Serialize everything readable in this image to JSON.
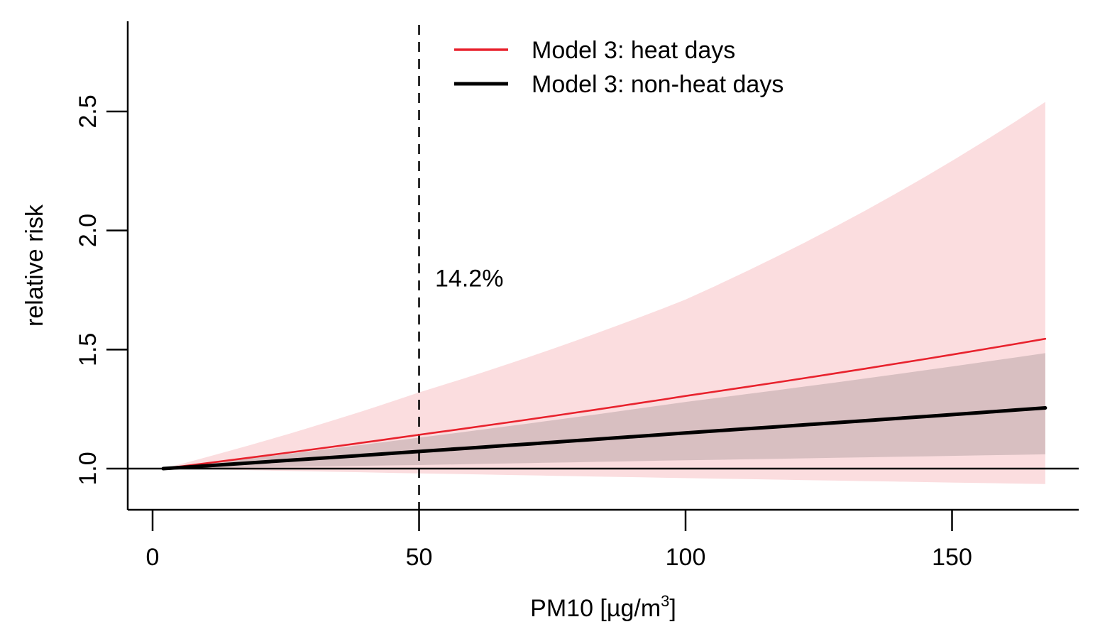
{
  "chart_data": {
    "type": "line",
    "xlabel": "PM10 [µg/m",
    "xlabel_superscript": "3",
    "xlabel_suffix": "]",
    "ylabel": "relative risk",
    "xlim": [
      -5,
      175
    ],
    "ylim": [
      0.83,
      2.87
    ],
    "x_ticks": [
      0,
      50,
      100,
      150
    ],
    "x_tick_labels": [
      "0",
      "50",
      "100",
      "150"
    ],
    "y_ticks": [
      1.0,
      1.5,
      2.0,
      2.5
    ],
    "y_tick_labels": [
      "1.0",
      "1.5",
      "2.0",
      "2.5"
    ],
    "reference_hline": 1.0,
    "reference_vline": 50,
    "annotation": {
      "text": "14.2%",
      "x": 53,
      "y": 1.8
    },
    "legend_position": "top",
    "series": [
      {
        "name": "Model 3: heat days",
        "color": "#e8222d",
        "band_color": "#fbdddf",
        "x": [
          2,
          50,
          100,
          167.5
        ],
        "y": [
          1.0,
          1.142,
          1.305,
          1.545
        ],
        "lower": [
          1.0,
          0.98,
          0.96,
          0.935
        ],
        "upper": [
          1.0,
          1.32,
          1.71,
          2.54
        ]
      },
      {
        "name": "Model 3: non-heat days",
        "color": "#000000",
        "band_color": "#d8bfc1",
        "x": [
          2,
          50,
          100,
          167.5
        ],
        "y": [
          1.0,
          1.072,
          1.15,
          1.255
        ],
        "lower": [
          1.0,
          1.015,
          1.035,
          1.06
        ],
        "upper": [
          1.0,
          1.13,
          1.28,
          1.485
        ]
      }
    ]
  }
}
